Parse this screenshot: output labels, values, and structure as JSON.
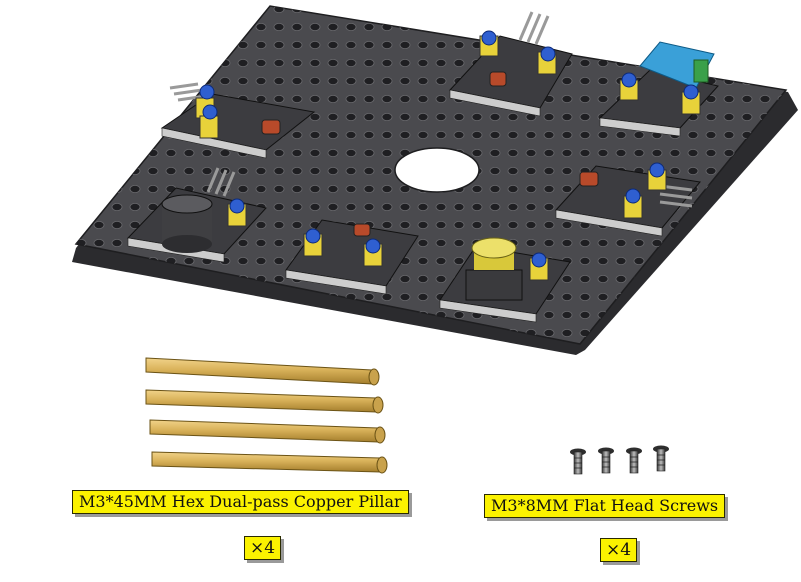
{
  "parts": {
    "pillar": {
      "label": "M3*45MM Hex Dual-pass Copper Pillar",
      "quantity": "×4",
      "count": 4
    },
    "screw": {
      "label": "M3*8MM Flat Head Screws",
      "quantity": "×4",
      "count": 4
    }
  },
  "colors": {
    "plate": "#4a4a4e",
    "plate_edge": "#2b2b2e",
    "module_pcb": "#46464a",
    "brass": "#d9b25a",
    "standoff_yellow": "#e8d23a",
    "screw_blue": "#2f5fd0",
    "label_bg": "#fbf200",
    "sensor_blue": "#3aa0d8"
  },
  "icons": {
    "plate": "acrylic-base-plate-illustration",
    "pillar": "copper-pillar-illustration",
    "screw": "flat-head-screw-illustration"
  }
}
